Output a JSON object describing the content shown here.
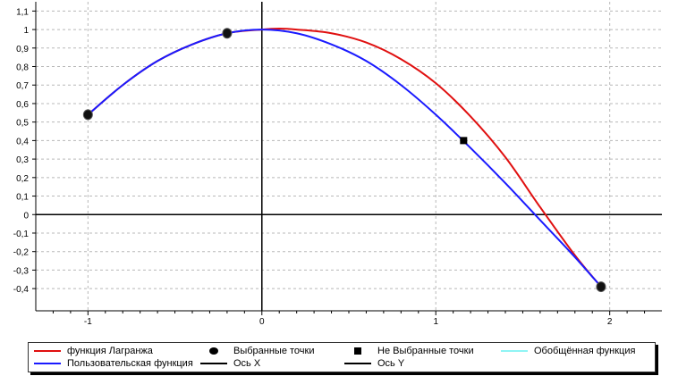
{
  "chart_data": {
    "type": "line",
    "title": "",
    "xlabel": "",
    "ylabel": "",
    "xlim": [
      -1.3,
      2.3
    ],
    "ylim": [
      -0.52,
      1.15
    ],
    "x_ticks": [
      -1,
      0,
      1,
      2
    ],
    "x_tick_labels": [
      "-1",
      "0",
      "1",
      "2"
    ],
    "y_ticks": [
      -0.4,
      -0.3,
      -0.2,
      -0.1,
      0,
      0.1,
      0.2,
      0.3,
      0.4,
      0.5,
      0.6,
      0.7,
      0.8,
      0.9,
      1,
      1.1
    ],
    "y_tick_labels": [
      "-0,4",
      "-0,3",
      "-0,2",
      "-0,1",
      "0",
      "0,1",
      "0,2",
      "0,3",
      "0,4",
      "0,5",
      "0,6",
      "0,7",
      "0,8",
      "0,9",
      "1",
      "1,1"
    ],
    "grid": true,
    "legend_position": "bottom",
    "series": [
      {
        "name": "функция Лагранжа",
        "color": "#e01010",
        "x": [
          -1.0,
          -0.8,
          -0.6,
          -0.4,
          -0.2,
          0.0,
          0.1,
          0.2,
          0.4,
          0.6,
          0.8,
          1.0,
          1.2,
          1.4,
          1.6,
          1.8,
          1.95
        ],
        "y": [
          0.54,
          0.7,
          0.83,
          0.92,
          0.98,
          1.0,
          1.005,
          1.0,
          0.98,
          0.93,
          0.84,
          0.71,
          0.53,
          0.31,
          0.04,
          -0.22,
          -0.39
        ]
      },
      {
        "name": "Пользовательская функция",
        "color": "#1a1aff",
        "x": [
          -1.0,
          -0.8,
          -0.6,
          -0.4,
          -0.2,
          0.0,
          0.2,
          0.4,
          0.6,
          0.8,
          1.0,
          1.2,
          1.4,
          1.6,
          1.8,
          1.95
        ],
        "y": [
          0.54,
          0.7,
          0.83,
          0.92,
          0.98,
          1.0,
          0.98,
          0.92,
          0.83,
          0.7,
          0.54,
          0.36,
          0.17,
          -0.03,
          -0.23,
          -0.39
        ]
      }
    ],
    "selected_points": {
      "name": "Выбранные точки",
      "x": [
        -1.0,
        -0.2,
        1.95
      ],
      "y": [
        0.54,
        0.98,
        -0.39
      ]
    },
    "unselected_points": {
      "name": "Не Выбранные точки",
      "x": [
        1.16
      ],
      "y": [
        0.4
      ]
    },
    "legend": [
      {
        "label": "функция Лагранжа",
        "kind": "line",
        "color": "#e01010"
      },
      {
        "label": "Выбранные точки",
        "kind": "dot",
        "color": "#000000"
      },
      {
        "label": "Не Выбранные точки",
        "kind": "square",
        "color": "#000000"
      },
      {
        "label": "Обобщённая функция",
        "kind": "line",
        "color": "#8ff4f4"
      },
      {
        "label": "Пользовательская функция",
        "kind": "line",
        "color": "#1a1aff"
      },
      {
        "label": "Ось X",
        "kind": "line",
        "color": "#000000"
      },
      {
        "label": "Ось Y",
        "kind": "line",
        "color": "#000000"
      }
    ]
  }
}
